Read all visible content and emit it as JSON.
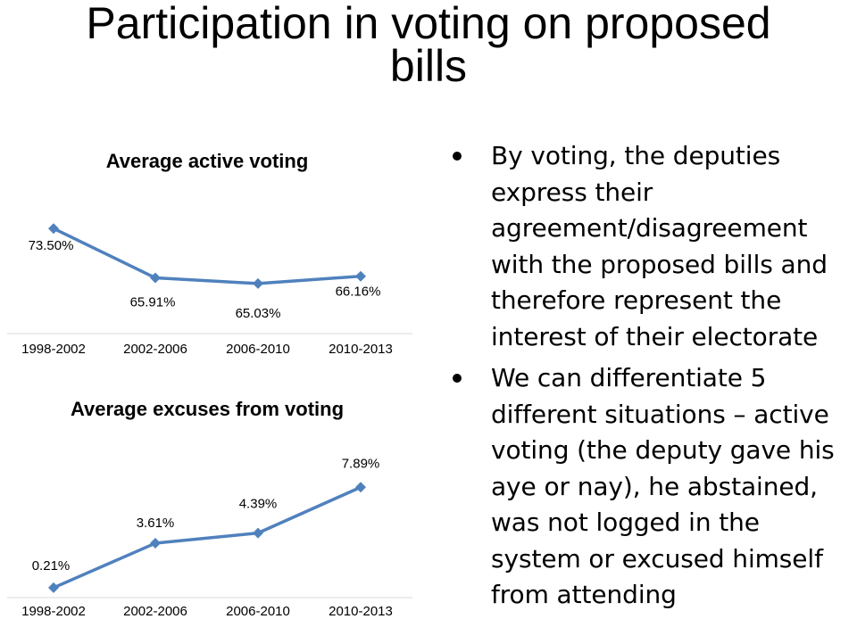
{
  "title": {
    "line1": "Participation in voting on proposed",
    "line2": "bills"
  },
  "chart_data": [
    {
      "type": "line",
      "title": "Average active voting",
      "categories": [
        "1998-2002",
        "2002-2006",
        "2006-2010",
        "2010-2013"
      ],
      "values": [
        73.5,
        65.91,
        65.03,
        66.16
      ],
      "value_labels": [
        "73.50%",
        "65.91%",
        "65.03%",
        "66.16%"
      ],
      "ylim": [
        62,
        76
      ],
      "grid": false,
      "color": "#4f81bd"
    },
    {
      "type": "line",
      "title": "Average excuses from voting",
      "categories": [
        "1998-2002",
        "2002-2006",
        "2006-2010",
        "2010-2013"
      ],
      "values": [
        0.21,
        3.61,
        4.39,
        7.89
      ],
      "value_labels": [
        "0.21%",
        "3.61%",
        "4.39%",
        "7.89%"
      ],
      "ylim": [
        0,
        9
      ],
      "grid": false,
      "color": "#4f81bd"
    }
  ],
  "bullets": [
    "By voting, the deputies express their agreement/disagreement with the proposed bills and therefore represent the interest of their electorate",
    "We can differentiate 5 different situations – active voting (the deputy gave his aye or nay), he abstained, was not logged in the system or excused himself from attending"
  ]
}
